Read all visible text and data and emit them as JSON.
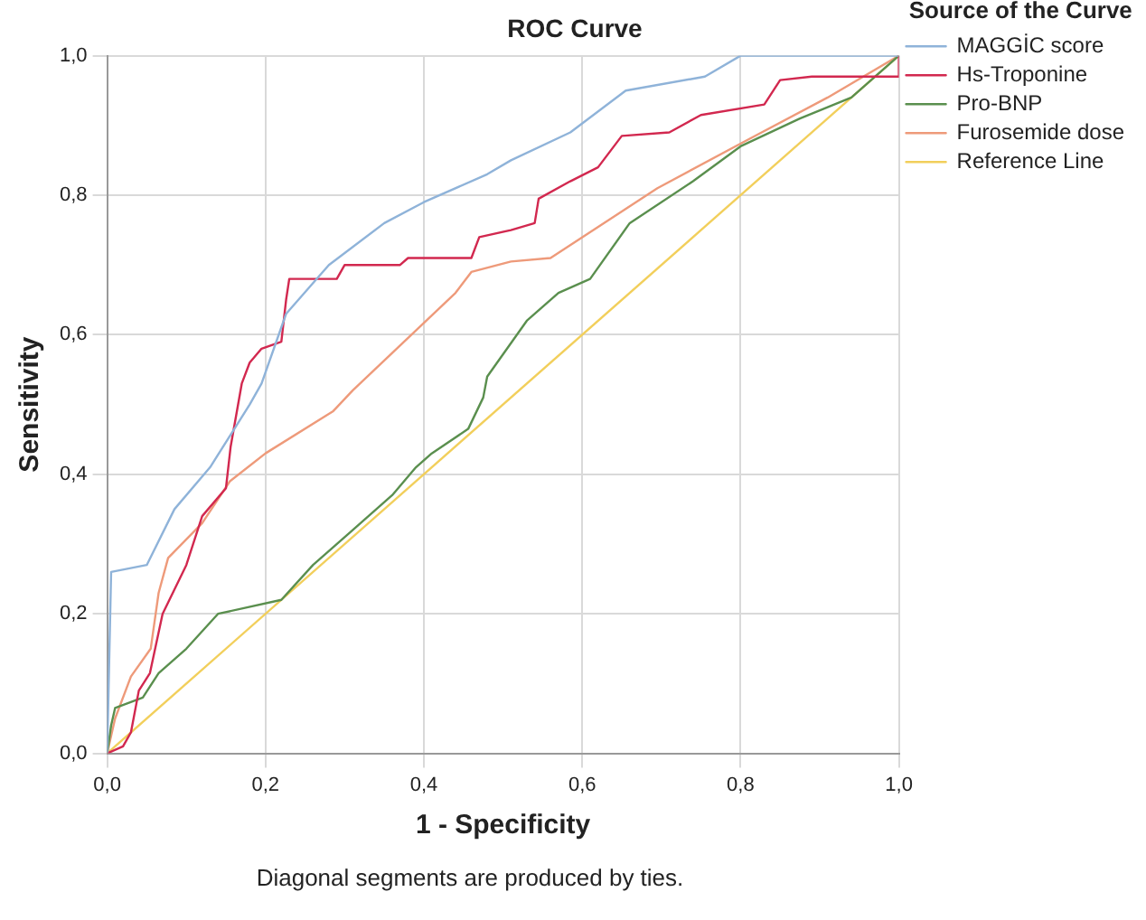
{
  "chart_data": {
    "type": "line",
    "title": "ROC Curve",
    "xlabel": "1 - Specificity",
    "ylabel": "Sensitivity",
    "legend_title": "Source of the Curve",
    "annotations": [
      "Diagonal segments are produced by ties."
    ],
    "xlim": [
      0,
      1
    ],
    "ylim": [
      0,
      1
    ],
    "xticks": [
      {
        "value": 0,
        "label": "0,0"
      },
      {
        "value": 0.2,
        "label": "0,2"
      },
      {
        "value": 0.4,
        "label": "0,4"
      },
      {
        "value": 0.6,
        "label": "0,6"
      },
      {
        "value": 0.8,
        "label": "0,8"
      },
      {
        "value": 1,
        "label": "1,0"
      }
    ],
    "yticks": [
      {
        "value": 0,
        "label": "0,0"
      },
      {
        "value": 0.2,
        "label": "0,2"
      },
      {
        "value": 0.4,
        "label": "0,4"
      },
      {
        "value": 0.6,
        "label": "0,6"
      },
      {
        "value": 0.8,
        "label": "0,8"
      },
      {
        "value": 1,
        "label": "1,0"
      }
    ],
    "grid": true,
    "legend": "right",
    "marker": "none",
    "line_style": "solid",
    "series": [
      {
        "name": "MAGGİC score",
        "color": "#8fb3d9",
        "x": [
          0,
          0.005,
          0.05,
          0.085,
          0.13,
          0.18,
          0.195,
          0.226,
          0.28,
          0.35,
          0.4,
          0.48,
          0.51,
          0.585,
          0.655,
          0.755,
          0.8,
          1
        ],
        "values": [
          0,
          0.26,
          0.27,
          0.35,
          0.41,
          0.5,
          0.53,
          0.63,
          0.7,
          0.76,
          0.79,
          0.83,
          0.85,
          0.89,
          0.95,
          0.97,
          1,
          1
        ]
      },
      {
        "name": "Hs-Troponine",
        "color": "#d2284f",
        "x": [
          0,
          0.02,
          0.03,
          0.04,
          0.054,
          0.07,
          0.1,
          0.12,
          0.15,
          0.156,
          0.17,
          0.18,
          0.195,
          0.22,
          0.226,
          0.23,
          0.29,
          0.3,
          0.37,
          0.38,
          0.46,
          0.47,
          0.51,
          0.54,
          0.545,
          0.585,
          0.62,
          0.65,
          0.71,
          0.75,
          0.83,
          0.85,
          0.89,
          1,
          1
        ],
        "values": [
          0,
          0.01,
          0.03,
          0.09,
          0.115,
          0.2,
          0.27,
          0.34,
          0.38,
          0.44,
          0.53,
          0.56,
          0.58,
          0.59,
          0.65,
          0.68,
          0.68,
          0.7,
          0.7,
          0.71,
          0.71,
          0.74,
          0.75,
          0.76,
          0.795,
          0.82,
          0.84,
          0.885,
          0.89,
          0.915,
          0.93,
          0.965,
          0.97,
          0.97,
          1
        ]
      },
      {
        "name": "Pro-BNP",
        "color": "#5a8f4e",
        "x": [
          0,
          0.005,
          0.01,
          0.045,
          0.065,
          0.1,
          0.14,
          0.22,
          0.26,
          0.31,
          0.36,
          0.39,
          0.41,
          0.456,
          0.475,
          0.48,
          0.53,
          0.57,
          0.61,
          0.66,
          0.74,
          0.8,
          0.875,
          0.94,
          1
        ],
        "values": [
          0,
          0.04,
          0.065,
          0.08,
          0.115,
          0.15,
          0.2,
          0.22,
          0.27,
          0.32,
          0.37,
          0.41,
          0.43,
          0.465,
          0.51,
          0.54,
          0.62,
          0.66,
          0.68,
          0.76,
          0.82,
          0.87,
          0.91,
          0.94,
          1
        ]
      },
      {
        "name": "Furosemide dose",
        "color": "#ee9a7a",
        "x": [
          0,
          0.01,
          0.03,
          0.055,
          0.065,
          0.077,
          0.12,
          0.155,
          0.2,
          0.285,
          0.31,
          0.44,
          0.46,
          0.51,
          0.56,
          0.695,
          0.81,
          0.91,
          1
        ],
        "values": [
          0,
          0.05,
          0.11,
          0.15,
          0.23,
          0.28,
          0.33,
          0.39,
          0.43,
          0.49,
          0.52,
          0.66,
          0.69,
          0.705,
          0.71,
          0.81,
          0.88,
          0.94,
          1
        ]
      },
      {
        "name": "Reference Line",
        "color": "#f2cf5b",
        "x": [
          0,
          1
        ],
        "values": [
          0,
          1
        ]
      }
    ]
  }
}
